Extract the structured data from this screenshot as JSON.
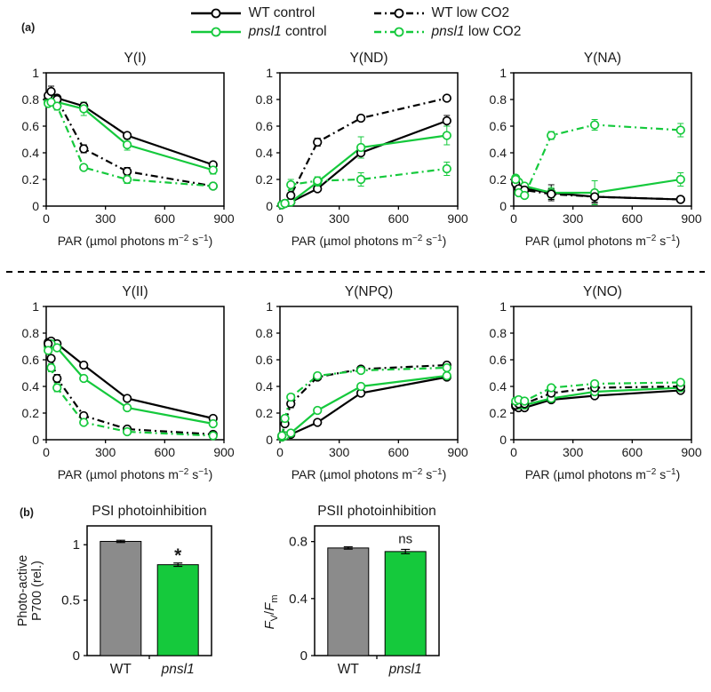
{
  "panels": {
    "a": "(a)",
    "b": "(b)"
  },
  "colors": {
    "black": "#000000",
    "green": "#15c93c",
    "gray": "#8b8b8b"
  },
  "legend": {
    "items": [
      {
        "genotype": "WT",
        "rest": " control",
        "italic": false,
        "color": "black",
        "dashed": false
      },
      {
        "genotype": "WT",
        "rest": " low CO2",
        "italic": false,
        "color": "black",
        "dashed": true
      },
      {
        "genotype": "pnsl1",
        "rest": " control",
        "italic": true,
        "color": "green",
        "dashed": false
      },
      {
        "genotype": "pnsl1",
        "rest": " low CO2",
        "italic": true,
        "color": "green",
        "dashed": true
      }
    ]
  },
  "x_axis_label": {
    "text": "PAR (µmol photons m⁻² s⁻¹)",
    "parts": {
      "pre": "PAR (µmol photons m",
      "sup1": "−2",
      "mid": " s",
      "sup2": "−1",
      "post": ")"
    }
  },
  "chart_data": [
    {
      "type": "line",
      "title": "Y(I)",
      "row": 1,
      "x": [
        10,
        25,
        55,
        190,
        410,
        845
      ],
      "x_ticks": [
        0,
        300,
        600,
        900
      ],
      "x_max": 900,
      "y_ticks": [
        0,
        0.2,
        0.4,
        0.6,
        0.8,
        1
      ],
      "y_max": 1,
      "series": [
        {
          "name": "WT control",
          "color": "black",
          "dashed": false,
          "values": [
            0.8,
            0.82,
            0.81,
            0.75,
            0.53,
            0.31
          ],
          "err": [
            0.02,
            0.02,
            0.02,
            0.03,
            0.02,
            0.02
          ]
        },
        {
          "name": "pnsl1 control",
          "color": "green",
          "dashed": false,
          "values": [
            0.78,
            0.8,
            0.78,
            0.73,
            0.46,
            0.27
          ],
          "err": [
            0.02,
            0.02,
            0.02,
            0.05,
            0.04,
            0.03
          ]
        },
        {
          "name": "WT low CO2",
          "color": "black",
          "dashed": true,
          "values": [
            0.83,
            0.86,
            0.8,
            0.43,
            0.26,
            0.15
          ],
          "err": [
            0.02,
            0.04,
            0.03,
            0.03,
            0.03,
            0.02
          ]
        },
        {
          "name": "pnsl1 low CO2",
          "color": "green",
          "dashed": true,
          "values": [
            0.77,
            0.78,
            0.75,
            0.29,
            0.2,
            0.15
          ],
          "err": [
            0.02,
            0.02,
            0.03,
            0.02,
            0.03,
            0.02
          ]
        }
      ]
    },
    {
      "type": "line",
      "title": "Y(ND)",
      "row": 1,
      "x": [
        10,
        25,
        55,
        190,
        410,
        845
      ],
      "x_ticks": [
        0,
        300,
        600,
        900
      ],
      "x_max": 900,
      "y_ticks": [
        0,
        0.2,
        0.4,
        0.6,
        0.8,
        1
      ],
      "y_max": 1,
      "series": [
        {
          "name": "WT control",
          "color": "black",
          "dashed": false,
          "values": [
            0.01,
            0.02,
            0.03,
            0.13,
            0.4,
            0.64
          ],
          "err": [
            0.005,
            0.01,
            0.01,
            0.02,
            0.04,
            0.04
          ]
        },
        {
          "name": "pnsl1 control",
          "color": "green",
          "dashed": false,
          "values": [
            0.01,
            0.02,
            0.03,
            0.18,
            0.44,
            0.53
          ],
          "err": [
            0.005,
            0.01,
            0.01,
            0.03,
            0.08,
            0.07
          ]
        },
        {
          "name": "WT low CO2",
          "color": "black",
          "dashed": true,
          "values": [
            0.01,
            0.02,
            0.08,
            0.48,
            0.66,
            0.81
          ],
          "err": [
            0.005,
            0.01,
            0.02,
            0.03,
            0.02,
            0.02
          ]
        },
        {
          "name": "pnsl1 low CO2",
          "color": "green",
          "dashed": true,
          "values": [
            0.01,
            0.02,
            0.16,
            0.19,
            0.2,
            0.28
          ],
          "err": [
            0.005,
            0.01,
            0.04,
            0.03,
            0.05,
            0.05
          ]
        }
      ]
    },
    {
      "type": "line",
      "title": "Y(NA)",
      "row": 1,
      "x": [
        10,
        25,
        55,
        190,
        410,
        845
      ],
      "x_ticks": [
        0,
        300,
        600,
        900
      ],
      "x_max": 900,
      "y_ticks": [
        0,
        0.2,
        0.4,
        0.6,
        0.8,
        1
      ],
      "y_max": 1,
      "series": [
        {
          "name": "WT control",
          "color": "black",
          "dashed": false,
          "values": [
            0.19,
            0.16,
            0.13,
            0.1,
            0.07,
            0.05
          ],
          "err": [
            0.03,
            0.02,
            0.02,
            0.06,
            0.05,
            0.01
          ]
        },
        {
          "name": "pnsl1 control",
          "color": "green",
          "dashed": false,
          "values": [
            0.21,
            0.18,
            0.15,
            0.1,
            0.1,
            0.2
          ],
          "err": [
            0.02,
            0.02,
            0.02,
            0.04,
            0.09,
            0.05
          ]
        },
        {
          "name": "WT low CO2",
          "color": "black",
          "dashed": true,
          "values": [
            0.17,
            0.13,
            0.12,
            0.09,
            0.07,
            0.05
          ],
          "err": [
            0.03,
            0.02,
            0.02,
            0.04,
            0.04,
            0.01
          ]
        },
        {
          "name": "pnsl1 low CO2",
          "color": "green",
          "dashed": true,
          "values": [
            0.2,
            0.1,
            0.08,
            0.53,
            0.61,
            0.57
          ],
          "err": [
            0.02,
            0.02,
            0.02,
            0.03,
            0.04,
            0.05
          ]
        }
      ]
    },
    {
      "type": "line",
      "title": "Y(II)",
      "row": 2,
      "x": [
        10,
        25,
        55,
        190,
        410,
        845
      ],
      "x_ticks": [
        0,
        300,
        600,
        900
      ],
      "x_max": 900,
      "y_ticks": [
        0,
        0.2,
        0.4,
        0.6,
        0.8,
        1
      ],
      "y_max": 1,
      "series": [
        {
          "name": "WT control",
          "color": "black",
          "dashed": false,
          "values": [
            0.73,
            0.74,
            0.72,
            0.56,
            0.31,
            0.16
          ],
          "err": [
            0.01,
            0.01,
            0.01,
            0.02,
            0.02,
            0.01
          ]
        },
        {
          "name": "pnsl1 control",
          "color": "green",
          "dashed": false,
          "values": [
            0.7,
            0.72,
            0.69,
            0.46,
            0.24,
            0.12
          ],
          "err": [
            0.01,
            0.01,
            0.02,
            0.02,
            0.02,
            0.01
          ]
        },
        {
          "name": "WT low CO2",
          "color": "black",
          "dashed": true,
          "values": [
            0.72,
            0.61,
            0.46,
            0.18,
            0.08,
            0.04
          ],
          "err": [
            0.01,
            0.02,
            0.03,
            0.02,
            0.01,
            0.01
          ]
        },
        {
          "name": "pnsl1 low CO2",
          "color": "green",
          "dashed": true,
          "values": [
            0.67,
            0.54,
            0.39,
            0.13,
            0.06,
            0.03
          ],
          "err": [
            0.02,
            0.03,
            0.03,
            0.02,
            0.01,
            0.01
          ]
        }
      ]
    },
    {
      "type": "line",
      "title": "Y(NPQ)",
      "row": 2,
      "x": [
        10,
        25,
        55,
        190,
        410,
        845
      ],
      "x_ticks": [
        0,
        300,
        600,
        900
      ],
      "x_max": 900,
      "y_ticks": [
        0,
        0.2,
        0.4,
        0.6,
        0.8,
        1
      ],
      "y_max": 1,
      "series": [
        {
          "name": "WT control",
          "color": "black",
          "dashed": false,
          "values": [
            0.02,
            0.03,
            0.04,
            0.13,
            0.35,
            0.47
          ],
          "err": [
            0.005,
            0.01,
            0.01,
            0.02,
            0.02,
            0.02
          ]
        },
        {
          "name": "pnsl1 control",
          "color": "green",
          "dashed": false,
          "values": [
            0.02,
            0.03,
            0.05,
            0.22,
            0.4,
            0.48
          ],
          "err": [
            0.005,
            0.01,
            0.01,
            0.02,
            0.02,
            0.02
          ]
        },
        {
          "name": "WT low CO2",
          "color": "black",
          "dashed": true,
          "values": [
            0.03,
            0.12,
            0.27,
            0.47,
            0.53,
            0.56
          ],
          "err": [
            0.01,
            0.02,
            0.03,
            0.02,
            0.02,
            0.02
          ]
        },
        {
          "name": "pnsl1 low CO2",
          "color": "green",
          "dashed": true,
          "values": [
            0.03,
            0.16,
            0.32,
            0.48,
            0.52,
            0.54
          ],
          "err": [
            0.01,
            0.02,
            0.02,
            0.02,
            0.02,
            0.02
          ]
        }
      ]
    },
    {
      "type": "line",
      "title": "Y(NO)",
      "row": 2,
      "x": [
        10,
        25,
        55,
        190,
        410,
        845
      ],
      "x_ticks": [
        0,
        300,
        600,
        900
      ],
      "x_max": 900,
      "y_ticks": [
        0,
        0.2,
        0.4,
        0.6,
        0.8,
        1
      ],
      "y_max": 1,
      "series": [
        {
          "name": "WT control",
          "color": "black",
          "dashed": false,
          "values": [
            0.25,
            0.24,
            0.24,
            0.3,
            0.33,
            0.37
          ],
          "err": [
            0.01,
            0.01,
            0.01,
            0.01,
            0.02,
            0.02
          ]
        },
        {
          "name": "pnsl1 control",
          "color": "green",
          "dashed": false,
          "values": [
            0.27,
            0.26,
            0.26,
            0.31,
            0.36,
            0.39
          ],
          "err": [
            0.01,
            0.01,
            0.01,
            0.02,
            0.02,
            0.02
          ]
        },
        {
          "name": "WT low CO2",
          "color": "black",
          "dashed": true,
          "values": [
            0.26,
            0.27,
            0.27,
            0.35,
            0.39,
            0.4
          ],
          "err": [
            0.02,
            0.02,
            0.01,
            0.02,
            0.02,
            0.02
          ]
        },
        {
          "name": "pnsl1 low CO2",
          "color": "green",
          "dashed": true,
          "values": [
            0.29,
            0.3,
            0.29,
            0.39,
            0.42,
            0.43
          ],
          "err": [
            0.02,
            0.02,
            0.02,
            0.02,
            0.02,
            0.02
          ]
        }
      ]
    },
    {
      "type": "bar",
      "title": "PSI photoinhibition",
      "ylabel_lines": [
        "Photo-active",
        "P700 (rel.)"
      ],
      "y_ticks": [
        0,
        0.5,
        1
      ],
      "y_max": 1.17,
      "categories": [
        "WT",
        "pnsl1"
      ],
      "italic_categories": [
        false,
        true
      ],
      "values": [
        1.03,
        0.82
      ],
      "errors": [
        0.01,
        0.015
      ],
      "bar_colors": [
        "gray",
        "green"
      ],
      "annotations": [
        "",
        "*"
      ]
    },
    {
      "type": "bar",
      "title": "PSII photoinhibition",
      "ylabel_fvfm": {
        "f1": "F",
        "s1": "V",
        "slash": "/",
        "f2": "F",
        "s2": "m"
      },
      "y_ticks": [
        0,
        0.4,
        0.8
      ],
      "y_max": 0.91,
      "categories": [
        "WT",
        "pnsl1"
      ],
      "italic_categories": [
        false,
        true
      ],
      "values": [
        0.755,
        0.73
      ],
      "errors": [
        0.008,
        0.015
      ],
      "bar_colors": [
        "gray",
        "green"
      ],
      "annotations": [
        "",
        "ns"
      ]
    }
  ]
}
